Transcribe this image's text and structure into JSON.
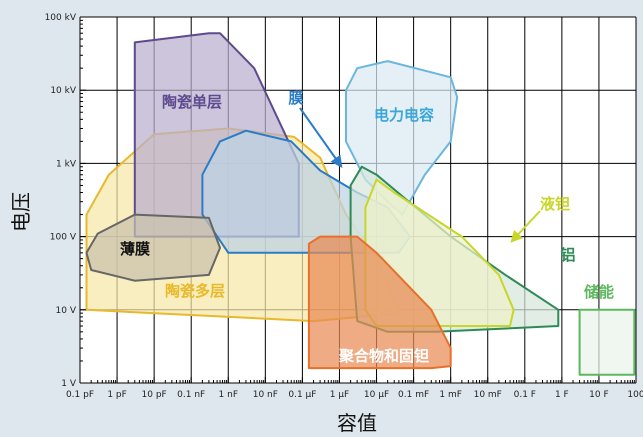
{
  "chart_data": {
    "type": "area",
    "title": "",
    "xlabel": "容值",
    "ylabel": "电压",
    "x_scale": "log",
    "y_scale": "log",
    "xlim_farads": [
      1e-13,
      100
    ],
    "ylim_volts": [
      1,
      100000
    ],
    "x_tick_labels": [
      "0.1 pF",
      "1 pF",
      "10 pF",
      "0.1 nF",
      "1 nF",
      "10 nF",
      "0.1 µF",
      "1 µF",
      "10 µF",
      "0.1 mF",
      "1 mF",
      "10 mF",
      "0.1 F",
      "1 F",
      "10 F",
      "100"
    ],
    "y_tick_labels": [
      "1 V",
      "10 V",
      "100 V",
      "1 kV",
      "10 kV",
      "100 kV"
    ],
    "grid": true,
    "regions": [
      {
        "id": "multilayer",
        "name": "陶瓷多层",
        "stroke": "#e8b92a",
        "fill": "#f7e7a6",
        "label_color": "#e8b92a",
        "points_f_v": [
          [
            1.5e-13,
            10
          ],
          [
            1.5e-13,
            200
          ],
          [
            6e-13,
            700
          ],
          [
            1e-11,
            2500
          ],
          [
            1e-09,
            3000
          ],
          [
            6e-08,
            2300
          ],
          [
            3e-07,
            1200
          ],
          [
            1.5e-06,
            200
          ],
          [
            1e-05,
            50
          ],
          [
            4.5e-05,
            9
          ],
          [
            2e-07,
            7
          ],
          [
            1.5e-13,
            10
          ]
        ]
      },
      {
        "id": "single",
        "name": "陶瓷单层",
        "stroke": "#5e4a8e",
        "fill": "#b9aecf",
        "label_color": "#5e4a8e",
        "points_f_v": [
          [
            3e-12,
            45000
          ],
          [
            3e-10,
            60000
          ],
          [
            6e-10,
            60000
          ],
          [
            5e-09,
            20000
          ],
          [
            8e-08,
            1000
          ],
          [
            8e-08,
            100
          ],
          [
            3e-12,
            100
          ],
          [
            3e-12,
            45000
          ]
        ]
      },
      {
        "id": "film",
        "name": "膜",
        "stroke": "#2a7cc7",
        "fill": "#bcd3e4",
        "label_color": "#2a7cc7",
        "points_f_v": [
          [
            2e-10,
            700
          ],
          [
            6e-10,
            2000
          ],
          [
            3e-09,
            2800
          ],
          [
            5e-08,
            2000
          ],
          [
            3e-07,
            800
          ],
          [
            3e-06,
            400
          ],
          [
            2e-05,
            250
          ],
          [
            8e-05,
            100
          ],
          [
            4e-05,
            60
          ],
          [
            1e-06,
            60
          ],
          [
            1e-09,
            60
          ],
          [
            2e-10,
            200
          ],
          [
            2e-10,
            700
          ]
        ]
      },
      {
        "id": "thinfilm",
        "name": "薄膜",
        "stroke": "#666666",
        "fill": "#c9c2ad",
        "label_color": "#111111",
        "points_f_v": [
          [
            1.5e-13,
            60
          ],
          [
            3e-13,
            110
          ],
          [
            3e-12,
            200
          ],
          [
            3e-10,
            180
          ],
          [
            6e-10,
            70
          ],
          [
            3e-10,
            30
          ],
          [
            3e-12,
            25
          ],
          [
            2e-13,
            35
          ],
          [
            1.5e-13,
            60
          ]
        ]
      },
      {
        "id": "electrolytic",
        "name": "电力电容",
        "stroke": "#6ab7de",
        "fill": "#d9eaf3",
        "label_color": "#3aa6da",
        "points_f_v": [
          [
            1.5e-06,
            10000
          ],
          [
            3e-06,
            20000
          ],
          [
            2e-05,
            25000
          ],
          [
            0.001,
            15000
          ],
          [
            0.0015,
            8000
          ],
          [
            0.001,
            2000
          ],
          [
            0.0002,
            700
          ],
          [
            5e-05,
            200
          ],
          [
            2e-05,
            300
          ],
          [
            5e-06,
            600
          ],
          [
            1.5e-06,
            2000
          ],
          [
            1.5e-06,
            10000
          ]
        ]
      },
      {
        "id": "aluminum",
        "name": "铝",
        "stroke": "#2e8b57",
        "fill": "#d7e6dd",
        "label_color": "#2e8b57",
        "points_f_v": [
          [
            2e-06,
            500
          ],
          [
            4e-06,
            900
          ],
          [
            1e-05,
            700
          ],
          [
            0.001,
            100
          ],
          [
            0.03,
            30
          ],
          [
            0.8,
            10
          ],
          [
            0.8,
            6
          ],
          [
            0.0004,
            5
          ],
          [
            2e-05,
            5
          ],
          [
            3e-06,
            7
          ],
          [
            2e-06,
            100
          ],
          [
            2e-06,
            500
          ]
        ]
      },
      {
        "id": "tantalum",
        "name": "液钽",
        "stroke": "#c8d62a",
        "fill": "#eef1c9",
        "label_color": "#c8d62a",
        "points_f_v": [
          [
            5e-06,
            250
          ],
          [
            1e-05,
            600
          ],
          [
            3e-05,
            400
          ],
          [
            0.002,
            100
          ],
          [
            0.02,
            30
          ],
          [
            0.05,
            10
          ],
          [
            0.04,
            6
          ],
          [
            1e-05,
            6
          ],
          [
            5e-06,
            10
          ],
          [
            5e-06,
            250
          ]
        ]
      },
      {
        "id": "polymer",
        "name": "聚合物和固钽",
        "stroke": "#e8702a",
        "fill": "#e88a55",
        "label_color": "#ffffff",
        "points_f_v": [
          [
            1.5e-07,
            80
          ],
          [
            3e-07,
            100
          ],
          [
            3e-06,
            100
          ],
          [
            1e-05,
            60
          ],
          [
            0.0003,
            10
          ],
          [
            0.001,
            3
          ],
          [
            0.001,
            1.7
          ],
          [
            0.0003,
            1.6
          ],
          [
            1.5e-07,
            1.6
          ],
          [
            1.5e-07,
            80
          ]
        ]
      },
      {
        "id": "supercap",
        "name": "储能",
        "stroke": "#5cb85c",
        "fill": "#eaf3ea",
        "label_color": "#5cb85c",
        "points_f_v": [
          [
            3,
            10
          ],
          [
            90,
            10
          ],
          [
            90,
            1.3
          ],
          [
            3,
            1.3
          ],
          [
            3,
            10
          ]
        ]
      }
    ],
    "label_positions_note": "labels placed inside or beside each region",
    "pointer_arrows": [
      "膜",
      "液钽"
    ]
  }
}
